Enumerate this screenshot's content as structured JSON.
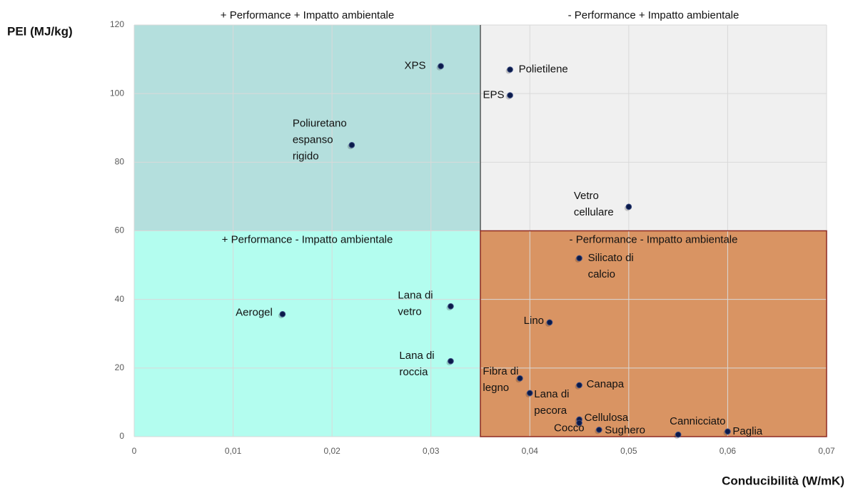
{
  "chart_data": {
    "type": "scatter",
    "x_label": "Conducibilità (W/mK)",
    "y_label": "PEI (MJ/kg)",
    "xlim": [
      0,
      0.07
    ],
    "ylim": [
      0,
      120
    ],
    "xticks": [
      0,
      {
        "value": 0.01,
        "label": "0,01"
      },
      {
        "value": 0.02,
        "label": "0,02"
      },
      {
        "value": 0.03,
        "label": "0,03"
      },
      {
        "value": 0.04,
        "label": "0,04"
      },
      {
        "value": 0.05,
        "label": "0,05"
      },
      {
        "value": 0.06,
        "label": "0,06"
      },
      {
        "value": 0.07,
        "label": "0,07"
      }
    ],
    "yticks": [
      0,
      20,
      40,
      60,
      80,
      100,
      120
    ],
    "grid": true,
    "color": "#0a1a4a",
    "quadrants": [
      {
        "label": "+ Performance + Impatto ambientale",
        "xlim": [
          0,
          0.035
        ],
        "ylim": [
          60,
          120
        ],
        "color": "#b4dfdd"
      },
      {
        "label": "- Performance + Impatto ambientale",
        "xlim": [
          0.035,
          0.07
        ],
        "ylim": [
          60,
          120
        ],
        "color": "#f0f0f0"
      },
      {
        "label": "+ Performance - Impatto ambientale",
        "xlim": [
          0,
          0.035
        ],
        "ylim": [
          0,
          60
        ],
        "color": "#b3fdef"
      },
      {
        "label": "- Performance - Impatto ambientale",
        "xlim": [
          0.035,
          0.07
        ],
        "ylim": [
          0,
          60
        ],
        "color": "#d99463"
      }
    ],
    "points": [
      {
        "label": [
          "XPS"
        ],
        "x": 0.031,
        "y": 108
      },
      {
        "label": [
          "Polietilene"
        ],
        "x": 0.038,
        "y": 107
      },
      {
        "label": [
          "EPS"
        ],
        "x": 0.038,
        "y": 99.5
      },
      {
        "label": [
          "Poliuretano",
          "espanso",
          "rigido"
        ],
        "x": 0.022,
        "y": 85
      },
      {
        "label": [
          "Vetro",
          "cellulare"
        ],
        "x": 0.05,
        "y": 67
      },
      {
        "label": [
          "Silicato di",
          "calcio"
        ],
        "x": 0.045,
        "y": 52
      },
      {
        "label": [
          "Lana di",
          "vetro"
        ],
        "x": 0.032,
        "y": 38
      },
      {
        "label": [
          "Aerogel"
        ],
        "x": 0.015,
        "y": 35.7
      },
      {
        "label": [
          "Lana di",
          "roccia"
        ],
        "x": 0.032,
        "y": 22
      },
      {
        "label": [
          "Lino"
        ],
        "x": 0.042,
        "y": 33.3
      },
      {
        "label": [
          "Fibra di",
          "legno"
        ],
        "x": 0.039,
        "y": 17
      },
      {
        "label": [
          "Canapa"
        ],
        "x": 0.045,
        "y": 15
      },
      {
        "label": [
          "Lana di",
          "pecora"
        ],
        "x": 0.04,
        "y": 12.7
      },
      {
        "label": [
          "Cellulosa"
        ],
        "x": 0.045,
        "y": 5
      },
      {
        "label": [
          "Cocco"
        ],
        "x": 0.045,
        "y": 4
      },
      {
        "label": [
          "Sughero"
        ],
        "x": 0.047,
        "y": 2
      },
      {
        "label": [
          "Cannicciato"
        ],
        "x": 0.055,
        "y": 0.6
      },
      {
        "label": [
          "Paglia"
        ],
        "x": 0.06,
        "y": 1.5
      }
    ]
  }
}
